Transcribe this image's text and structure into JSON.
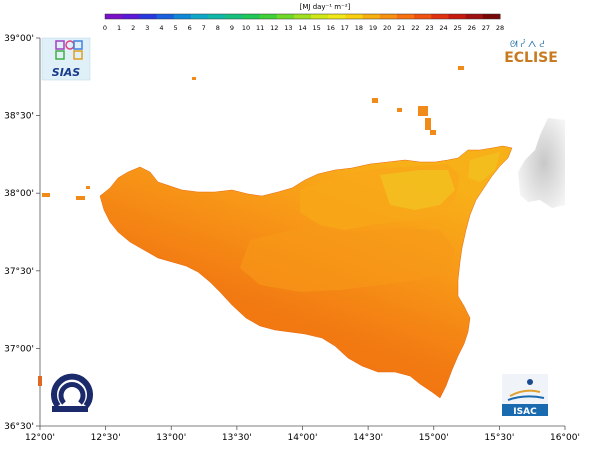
{
  "colorbar": {
    "unit_label": "[MJ day⁻¹ m⁻²]",
    "ticks": [
      "0",
      "1",
      "2",
      "3",
      "4",
      "5",
      "6",
      "7",
      "8",
      "9",
      "10",
      "11",
      "12",
      "13",
      "14",
      "15",
      "16",
      "17",
      "18",
      "19",
      "20",
      "21",
      "22",
      "23",
      "24",
      "25",
      "26",
      "27",
      "28"
    ],
    "colors": [
      "#7a10c8",
      "#5a18d8",
      "#2838e0",
      "#1860e0",
      "#1088d8",
      "#10a8c8",
      "#10b8a8",
      "#18c080",
      "#20c858",
      "#40d038",
      "#70d828",
      "#a0e020",
      "#d0e818",
      "#f0e818",
      "#f8d010",
      "#f8b010",
      "#f89010",
      "#f87010",
      "#f05010",
      "#e03010",
      "#c81810",
      "#a01010",
      "#780808"
    ]
  },
  "axes": {
    "lat_labels": [
      "39°00'",
      "38°30'",
      "38°00'",
      "37°30'",
      "37°00'",
      "36°30'"
    ],
    "lon_labels": [
      "12°00'",
      "12°30'",
      "13°00'",
      "13°30'",
      "14°00'",
      "14°30'",
      "15°00'",
      "15°30'",
      "16°00'"
    ]
  },
  "colors": {
    "sea": "#ffffff",
    "land_dark": "#f06a10",
    "land_mid": "#f89018",
    "land_light": "#f8b018",
    "land_yellow": "#f0c820",
    "relief": "#d0d0d0"
  },
  "logos": {
    "sias": "SIAS",
    "eclise": "ECLISE",
    "isac": "ISAC"
  }
}
